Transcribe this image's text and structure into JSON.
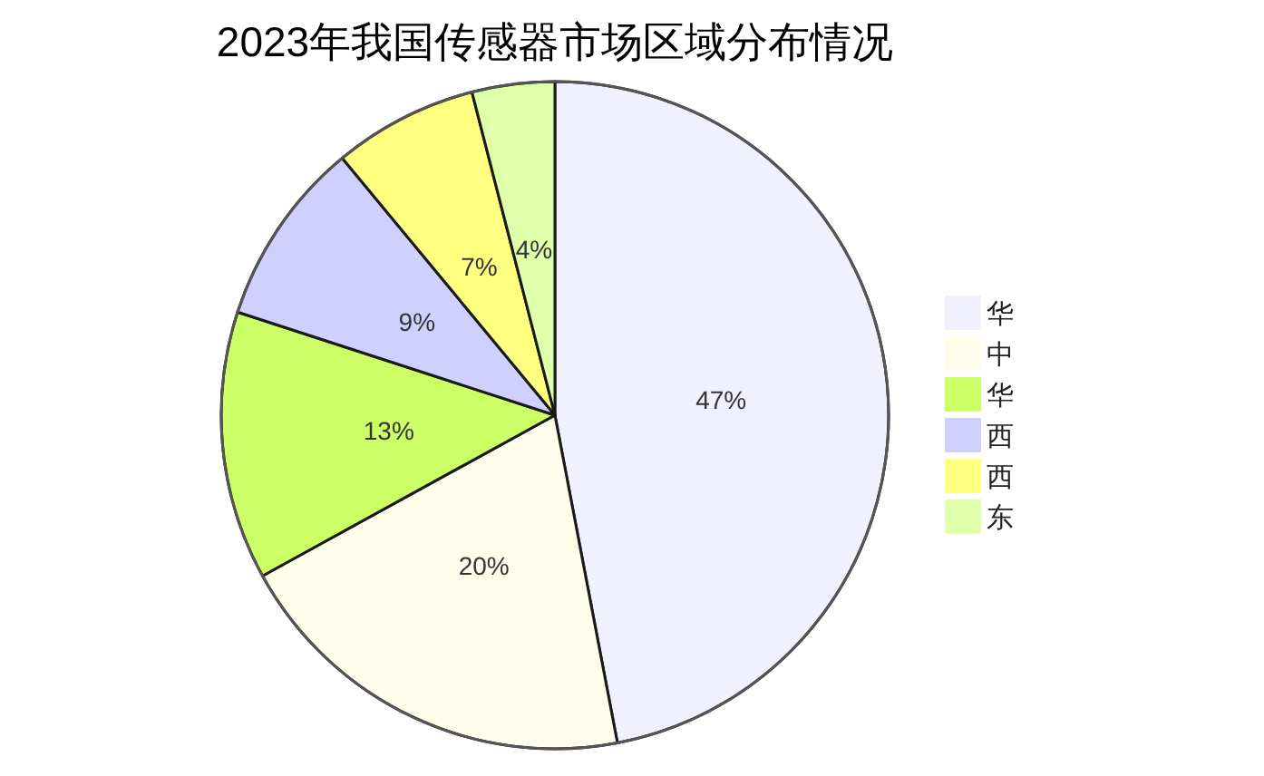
{
  "chart_data": {
    "type": "pie",
    "title": "2023年我国传感器市场区域分布情况",
    "categories": [
      "华",
      "中",
      "华",
      "西",
      "西",
      "东"
    ],
    "values": [
      47,
      20,
      13,
      9,
      7,
      4
    ],
    "colors": [
      "#f0f0fe",
      "#fffeea",
      "#ccff66",
      "#d0d0ff",
      "#ffff80",
      "#e0ffaa"
    ],
    "value_labels": [
      "47%",
      "20%",
      "13%",
      "9%",
      "7%",
      "4%"
    ],
    "legend": "right"
  }
}
